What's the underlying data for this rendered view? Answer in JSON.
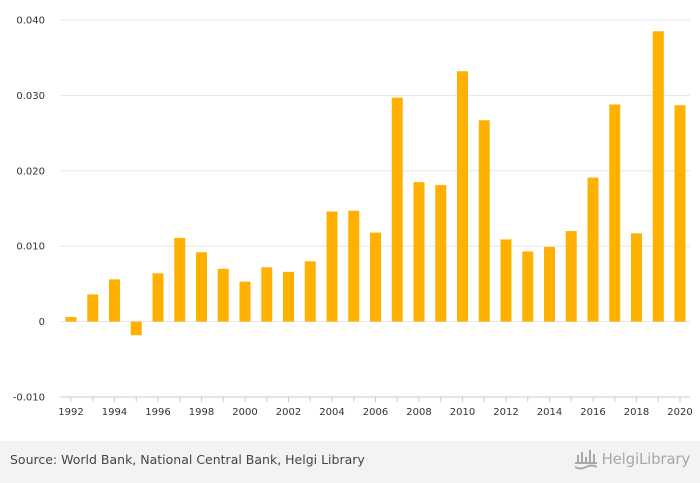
{
  "chart_data": {
    "type": "bar",
    "title": "",
    "xlabel": "",
    "ylabel": "",
    "ylim": [
      -0.01,
      0.04
    ],
    "yticks": [
      "-0.010",
      "0",
      "0.010",
      "0.020",
      "0.030",
      "0.040"
    ],
    "ytick_values": [
      -0.01,
      0,
      0.01,
      0.02,
      0.03,
      0.04
    ],
    "grid": true,
    "legend": "none",
    "bar_color": "#ffb000",
    "categories": [
      "1992",
      "1993",
      "1994",
      "1995",
      "1996",
      "1997",
      "1998",
      "1999",
      "2000",
      "2001",
      "2002",
      "2003",
      "2004",
      "2005",
      "2006",
      "2007",
      "2008",
      "2009",
      "2010",
      "2011",
      "2012",
      "2013",
      "2014",
      "2015",
      "2016",
      "2017",
      "2018",
      "2019",
      "2020"
    ],
    "x_tick_labels": [
      "1992",
      "",
      "1994",
      "",
      "1996",
      "",
      "1998",
      "",
      "2000",
      "",
      "2002",
      "",
      "2004",
      "",
      "2006",
      "",
      "2008",
      "",
      "2010",
      "",
      "2012",
      "",
      "2014",
      "",
      "2016",
      "",
      "2018",
      "",
      "2020"
    ],
    "values": [
      0.0006,
      0.0036,
      0.0056,
      -0.0018,
      0.0064,
      0.0111,
      0.0092,
      0.007,
      0.0053,
      0.0072,
      0.0066,
      0.008,
      0.0146,
      0.0147,
      0.0118,
      0.0297,
      0.0185,
      0.0181,
      0.0332,
      0.0267,
      0.0109,
      0.0093,
      0.0099,
      0.012,
      0.0191,
      0.0288,
      0.0117,
      0.0385,
      0.0287
    ]
  },
  "footer": {
    "source": "Source: World Bank, National Central Bank, Helgi Library",
    "logo_text": "HelgiLibrary",
    "logo_icon": "helgi-library-icon",
    "bg_color": "#f3f3f3"
  }
}
